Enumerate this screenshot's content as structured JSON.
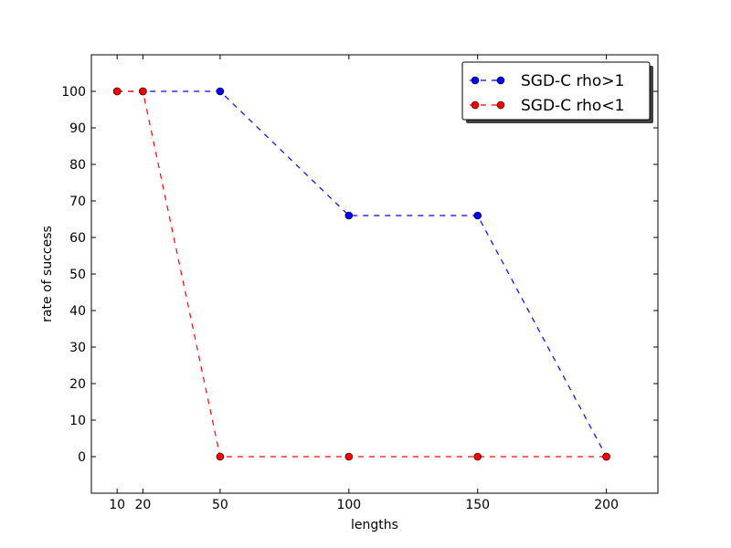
{
  "chart_data": {
    "type": "line",
    "title": "",
    "xlabel": "lengths",
    "ylabel": "rate of success",
    "xlim": [
      0,
      220
    ],
    "ylim": [
      -10,
      110
    ],
    "x": [
      10,
      20,
      50,
      100,
      150,
      200
    ],
    "xticks": [
      10,
      20,
      50,
      100,
      150,
      200
    ],
    "xtick_labels": [
      "10",
      "20",
      "50",
      "100",
      "150",
      "200"
    ],
    "yticks": [
      0,
      10,
      20,
      30,
      40,
      50,
      60,
      70,
      80,
      90,
      100
    ],
    "ytick_labels": [
      "0",
      "10",
      "20",
      "30",
      "40",
      "50",
      "60",
      "70",
      "80",
      "90",
      "100"
    ],
    "grid": false,
    "legend_position": "top-right",
    "series": [
      {
        "name": "SGD-C rho>1",
        "color": "#0000ff",
        "line_style": "dashed",
        "marker": "circle",
        "values": [
          100,
          100,
          100,
          66,
          66,
          0
        ]
      },
      {
        "name": "SGD-C rho<1",
        "color": "#ff0000",
        "line_style": "dashed",
        "marker": "circle",
        "values": [
          100,
          100,
          0,
          0,
          0,
          0
        ]
      }
    ]
  }
}
